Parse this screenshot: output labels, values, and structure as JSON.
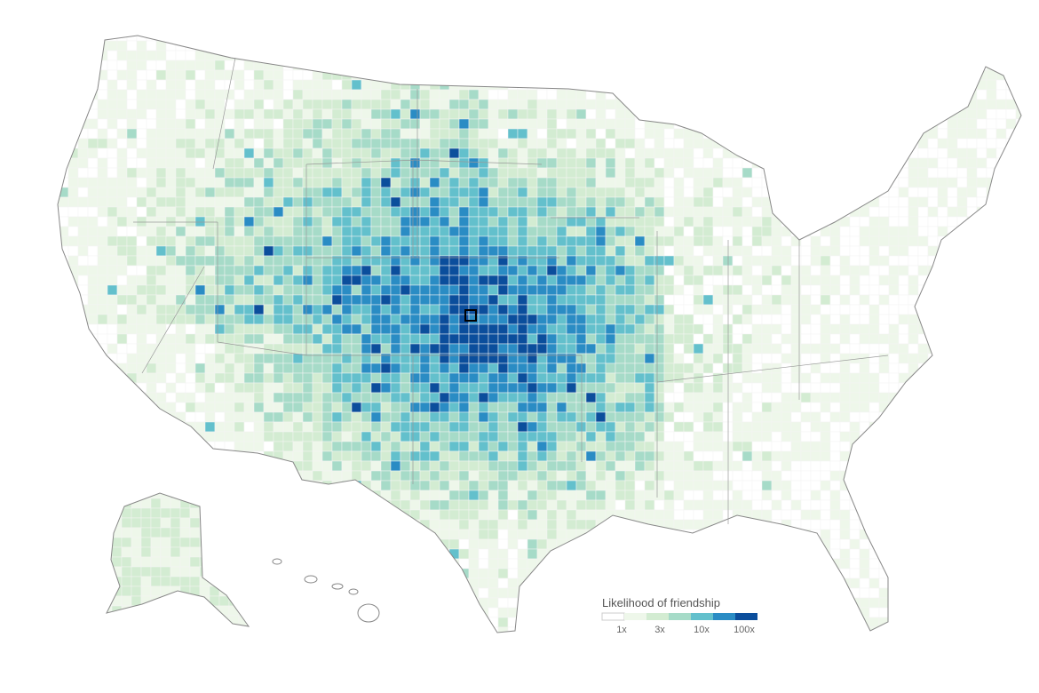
{
  "legend": {
    "title": "Likelihood of friendship",
    "labels": [
      "1x",
      "3x",
      "10x",
      "100x"
    ],
    "colors": [
      "#ffffff",
      "#eef7ea",
      "#d3ecd2",
      "#a6dbc8",
      "#63c0cc",
      "#2a8cc4",
      "#0b4e9c"
    ]
  }
}
